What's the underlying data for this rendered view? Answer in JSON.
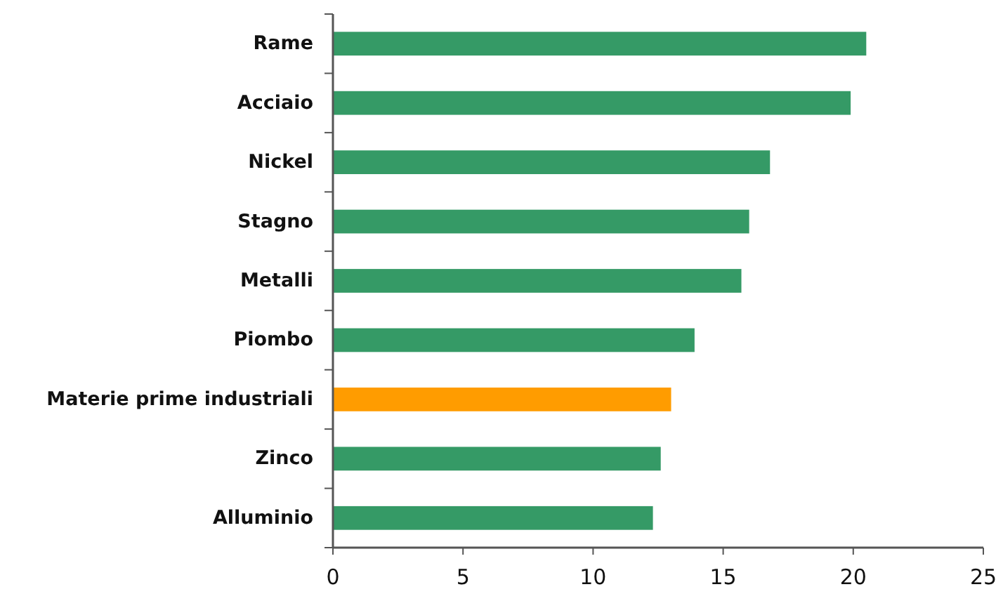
{
  "chart_data": {
    "type": "bar",
    "orientation": "horizontal",
    "categories": [
      "Rame",
      "Acciaio",
      "Nickel",
      "Stagno",
      "Metalli",
      "Piombo",
      "Materie prime industriali",
      "Zinco",
      "Alluminio"
    ],
    "values": [
      20.5,
      19.9,
      16.8,
      16.0,
      15.7,
      13.9,
      13.0,
      12.6,
      12.3
    ],
    "colors": [
      "#359a66",
      "#359a66",
      "#359a66",
      "#359a66",
      "#359a66",
      "#359a66",
      "#ff9c00",
      "#359a66",
      "#359a66"
    ],
    "xlim": [
      0,
      25
    ],
    "xticks": [
      0,
      5,
      10,
      15,
      20,
      25
    ],
    "grid": false
  }
}
